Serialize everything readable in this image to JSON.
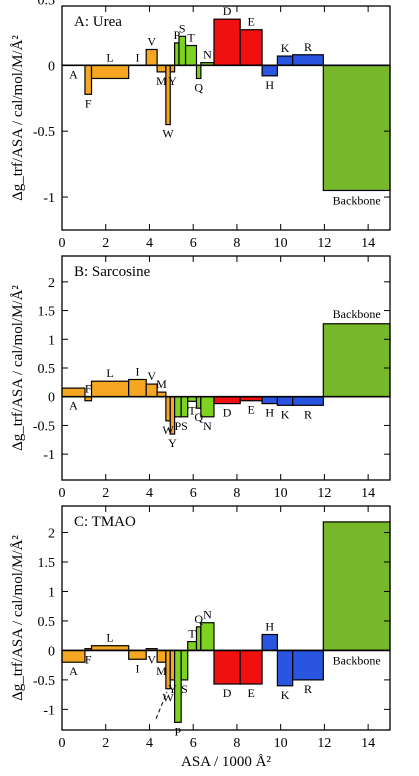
{
  "colors": {
    "hydrophobic": "#F5A623",
    "polar": "#7ED321",
    "acidic": "#F01010",
    "basic": "#2A55E0",
    "backbone": "#76B82A"
  },
  "shared_axes": {
    "xlabel": "ASA / 1000 Å²",
    "ylabel": "Δg_trf/ASA / cal/mol/M/Å²",
    "x_ticks": [
      "0",
      "2",
      "4",
      "6",
      "8",
      "10",
      "12",
      "14"
    ],
    "xlim": [
      0,
      15
    ]
  },
  "chart_data": [
    {
      "type": "bar",
      "title": "A: Urea",
      "ylim": [
        -1.25,
        0.45
      ],
      "y_ticks": [
        "0.5",
        "0",
        "-0.5",
        "-1"
      ],
      "bars": [
        {
          "label": "A",
          "x0": 0.0,
          "x1": 1.05,
          "value": 0.0,
          "group": "hydrophobic"
        },
        {
          "label": "F",
          "x0": 1.05,
          "x1": 1.35,
          "value": -0.22,
          "group": "hydrophobic"
        },
        {
          "label": "L",
          "x0": 1.35,
          "x1": 3.05,
          "value": -0.1,
          "group": "hydrophobic"
        },
        {
          "label": "I",
          "x0": 3.05,
          "x1": 3.85,
          "value": 0.0,
          "group": "hydrophobic"
        },
        {
          "label": "V",
          "x0": 3.85,
          "x1": 4.35,
          "value": 0.12,
          "group": "hydrophobic"
        },
        {
          "label": "M",
          "x0": 4.35,
          "x1": 4.75,
          "value": -0.05,
          "group": "hydrophobic"
        },
        {
          "label": "W",
          "x0": 4.75,
          "x1": 4.95,
          "value": -0.45,
          "group": "hydrophobic"
        },
        {
          "label": "Y",
          "x0": 4.95,
          "x1": 5.15,
          "value": -0.05,
          "group": "hydrophobic"
        },
        {
          "label": "P",
          "x0": 5.15,
          "x1": 5.35,
          "value": 0.17,
          "group": "polar"
        },
        {
          "label": "S",
          "x0": 5.35,
          "x1": 5.65,
          "value": 0.22,
          "group": "polar"
        },
        {
          "label": "T",
          "x0": 5.65,
          "x1": 6.15,
          "value": 0.15,
          "group": "polar"
        },
        {
          "label": "Q",
          "x0": 6.15,
          "x1": 6.35,
          "value": -0.1,
          "group": "polar"
        },
        {
          "label": "N",
          "x0": 6.35,
          "x1": 6.95,
          "value": 0.02,
          "group": "polar"
        },
        {
          "label": "D",
          "x0": 6.95,
          "x1": 8.15,
          "value": 0.35,
          "group": "acidic"
        },
        {
          "label": "E",
          "x0": 8.15,
          "x1": 9.15,
          "value": 0.27,
          "group": "acidic"
        },
        {
          "label": "H",
          "x0": 9.15,
          "x1": 9.85,
          "value": -0.08,
          "group": "basic"
        },
        {
          "label": "K",
          "x0": 9.85,
          "x1": 10.55,
          "value": 0.07,
          "group": "basic"
        },
        {
          "label": "R",
          "x0": 10.55,
          "x1": 11.95,
          "value": 0.08,
          "group": "basic"
        },
        {
          "label": "Backbone",
          "x0": 11.95,
          "x1": 15.0,
          "value": -0.95,
          "group": "backbone"
        }
      ]
    },
    {
      "type": "bar",
      "title": "B: Sarcosine",
      "ylim": [
        -1.45,
        2.45
      ],
      "y_ticks": [
        "2",
        "1.5",
        "1",
        "0.5",
        "0",
        "-0.5",
        "-1"
      ],
      "bars": [
        {
          "label": "A",
          "x0": 0.0,
          "x1": 1.05,
          "value": 0.15,
          "group": "hydrophobic"
        },
        {
          "label": "F",
          "x0": 1.05,
          "x1": 1.35,
          "value": -0.07,
          "group": "hydrophobic"
        },
        {
          "label": "L",
          "x0": 1.35,
          "x1": 3.05,
          "value": 0.27,
          "group": "hydrophobic"
        },
        {
          "label": "I",
          "x0": 3.05,
          "x1": 3.85,
          "value": 0.3,
          "group": "hydrophobic"
        },
        {
          "label": "V",
          "x0": 3.85,
          "x1": 4.35,
          "value": 0.22,
          "group": "hydrophobic"
        },
        {
          "label": "M",
          "x0": 4.35,
          "x1": 4.75,
          "value": 0.08,
          "group": "hydrophobic"
        },
        {
          "label": "W",
          "x0": 4.75,
          "x1": 4.95,
          "value": -0.42,
          "group": "hydrophobic"
        },
        {
          "label": "Y",
          "x0": 4.95,
          "x1": 5.15,
          "value": -0.65,
          "group": "hydrophobic"
        },
        {
          "label": "P",
          "x0": 5.15,
          "x1": 5.45,
          "value": -0.35,
          "group": "polar"
        },
        {
          "label": "S",
          "x0": 5.45,
          "x1": 5.75,
          "value": -0.35,
          "group": "polar"
        },
        {
          "label": "T",
          "x0": 5.75,
          "x1": 6.15,
          "value": -0.08,
          "group": "polar"
        },
        {
          "label": "Q",
          "x0": 6.15,
          "x1": 6.35,
          "value": -0.2,
          "group": "polar"
        },
        {
          "label": "N",
          "x0": 6.35,
          "x1": 6.95,
          "value": -0.35,
          "group": "polar"
        },
        {
          "label": "D",
          "x0": 6.95,
          "x1": 8.15,
          "value": -0.12,
          "group": "acidic"
        },
        {
          "label": "E",
          "x0": 8.15,
          "x1": 9.15,
          "value": -0.07,
          "group": "acidic"
        },
        {
          "label": "H",
          "x0": 9.15,
          "x1": 9.85,
          "value": -0.12,
          "group": "basic"
        },
        {
          "label": "K",
          "x0": 9.85,
          "x1": 10.55,
          "value": -0.15,
          "group": "basic"
        },
        {
          "label": "R",
          "x0": 10.55,
          "x1": 11.95,
          "value": -0.15,
          "group": "basic"
        },
        {
          "label": "Backbone",
          "x0": 11.95,
          "x1": 15.0,
          "value": 1.27,
          "group": "backbone"
        }
      ]
    },
    {
      "type": "bar",
      "title": "C: TMAO",
      "ylim": [
        -1.35,
        2.45
      ],
      "y_ticks": [
        "2",
        "1.5",
        "1",
        "0.5",
        "0",
        "-0.5",
        "-1"
      ],
      "bars": [
        {
          "label": "A",
          "x0": 0.0,
          "x1": 1.05,
          "value": -0.2,
          "group": "hydrophobic"
        },
        {
          "label": "F",
          "x0": 1.05,
          "x1": 1.35,
          "value": 0.03,
          "group": "hydrophobic"
        },
        {
          "label": "L",
          "x0": 1.35,
          "x1": 3.05,
          "value": 0.08,
          "group": "hydrophobic"
        },
        {
          "label": "I",
          "x0": 3.05,
          "x1": 3.85,
          "value": -0.15,
          "group": "hydrophobic"
        },
        {
          "label": "V",
          "x0": 3.85,
          "x1": 4.35,
          "value": 0.03,
          "group": "hydrophobic"
        },
        {
          "label": "M",
          "x0": 4.35,
          "x1": 4.75,
          "value": -0.2,
          "group": "hydrophobic"
        },
        {
          "label": "W",
          "x0": 4.75,
          "x1": 4.95,
          "value": -0.65,
          "group": "hydrophobic"
        },
        {
          "label": "Y",
          "x0": 4.95,
          "x1": 5.15,
          "value": -0.5,
          "group": "hydrophobic"
        },
        {
          "label": "P",
          "x0": 5.15,
          "x1": 5.45,
          "value": -1.22,
          "group": "polar"
        },
        {
          "label": "S",
          "x0": 5.45,
          "x1": 5.75,
          "value": -0.5,
          "group": "polar"
        },
        {
          "label": "T",
          "x0": 5.75,
          "x1": 6.15,
          "value": 0.15,
          "group": "polar"
        },
        {
          "label": "Q",
          "x0": 6.15,
          "x1": 6.35,
          "value": 0.4,
          "group": "polar"
        },
        {
          "label": "N",
          "x0": 6.35,
          "x1": 6.95,
          "value": 0.47,
          "group": "polar"
        },
        {
          "label": "D",
          "x0": 6.95,
          "x1": 8.15,
          "value": -0.57,
          "group": "acidic"
        },
        {
          "label": "E",
          "x0": 8.15,
          "x1": 9.15,
          "value": -0.57,
          "group": "acidic"
        },
        {
          "label": "H",
          "x0": 9.15,
          "x1": 9.85,
          "value": 0.27,
          "group": "basic"
        },
        {
          "label": "K",
          "x0": 9.85,
          "x1": 10.55,
          "value": -0.6,
          "group": "basic"
        },
        {
          "label": "R",
          "x0": 10.55,
          "x1": 11.95,
          "value": -0.5,
          "group": "basic"
        },
        {
          "label": "Backbone",
          "x0": 11.95,
          "x1": 15.0,
          "value": 2.18,
          "group": "backbone"
        }
      ]
    }
  ]
}
